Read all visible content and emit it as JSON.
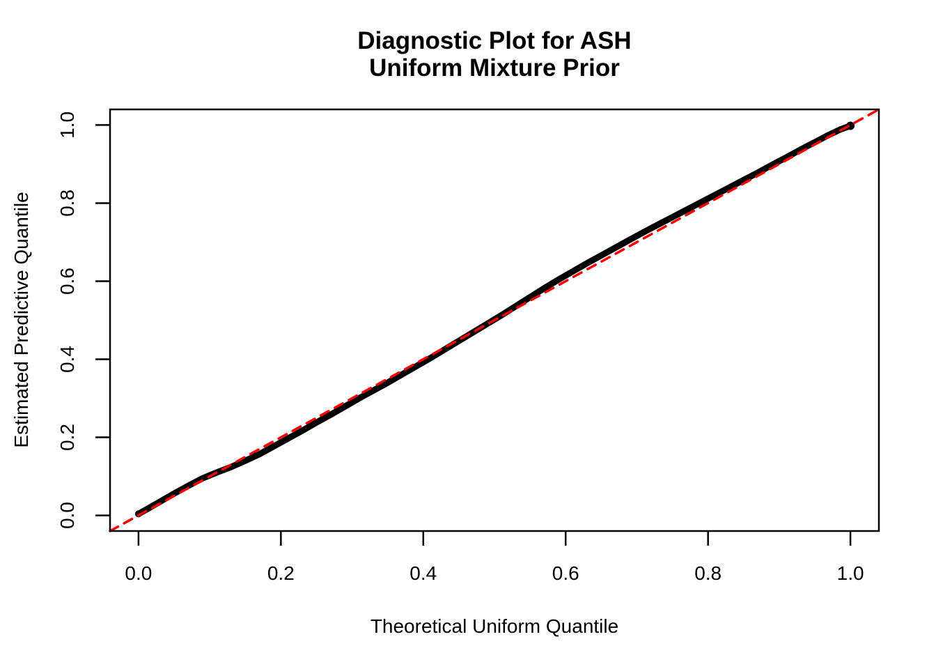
{
  "title": {
    "line1": "Diagnostic Plot for ASH",
    "line2": "Uniform Mixture Prior"
  },
  "colors": {
    "background": "#FFFFFF",
    "curve": "#000000",
    "reference_line": "#FF0000",
    "axis": "#000000",
    "text": "#000000"
  },
  "chart_data": {
    "type": "line",
    "title": "Diagnostic Plot for ASH\nUniform Mixture Prior",
    "xlabel": "Theoretical Uniform Quantile",
    "ylabel": "Estimated Predictive Quantile",
    "xlim": [
      -0.04,
      1.04
    ],
    "ylim": [
      -0.04,
      1.04
    ],
    "grid": false,
    "legend": false,
    "x_ticks": {
      "values": [
        0.0,
        0.2,
        0.4,
        0.6,
        0.8,
        1.0
      ],
      "labels": [
        "0.0",
        "0.2",
        "0.4",
        "0.6",
        "0.8",
        "1.0"
      ]
    },
    "y_ticks": {
      "values": [
        0.0,
        0.2,
        0.4,
        0.6,
        0.8,
        1.0
      ],
      "labels": [
        "0.0",
        "0.2",
        "0.4",
        "0.6",
        "0.8",
        "1.0"
      ]
    },
    "series": [
      {
        "name": "estimated-predictive-quantile-curve",
        "type": "line",
        "color": "#000000",
        "stroke_width": 9,
        "x": [
          0.0,
          0.01,
          0.03,
          0.05,
          0.07,
          0.09,
          0.11,
          0.13,
          0.15,
          0.17,
          0.19,
          0.21,
          0.23,
          0.25,
          0.27,
          0.29,
          0.31,
          0.33,
          0.35,
          0.37,
          0.39,
          0.41,
          0.43,
          0.45,
          0.47,
          0.49,
          0.51,
          0.53,
          0.55,
          0.57,
          0.59,
          0.61,
          0.63,
          0.65,
          0.67,
          0.69,
          0.71,
          0.73,
          0.75,
          0.77,
          0.79,
          0.81,
          0.83,
          0.85,
          0.87,
          0.89,
          0.91,
          0.93,
          0.95,
          0.97,
          0.985,
          1.0
        ],
        "y": [
          0.004,
          0.014,
          0.035,
          0.056,
          0.076,
          0.095,
          0.11,
          0.124,
          0.14,
          0.157,
          0.177,
          0.197,
          0.217,
          0.238,
          0.258,
          0.279,
          0.3,
          0.32,
          0.34,
          0.361,
          0.382,
          0.403,
          0.425,
          0.447,
          0.469,
          0.491,
          0.513,
          0.536,
          0.559,
          0.582,
          0.604,
          0.625,
          0.646,
          0.666,
          0.686,
          0.706,
          0.726,
          0.745,
          0.764,
          0.783,
          0.802,
          0.821,
          0.84,
          0.859,
          0.878,
          0.898,
          0.917,
          0.937,
          0.956,
          0.975,
          0.988,
          0.998
        ]
      },
      {
        "name": "identity-reference-line",
        "type": "line",
        "color": "#FF0000",
        "stroke_width": 3.5,
        "dash": [
          13,
          10
        ],
        "x": [
          -0.04,
          1.04
        ],
        "y": [
          -0.04,
          1.04
        ]
      }
    ]
  }
}
